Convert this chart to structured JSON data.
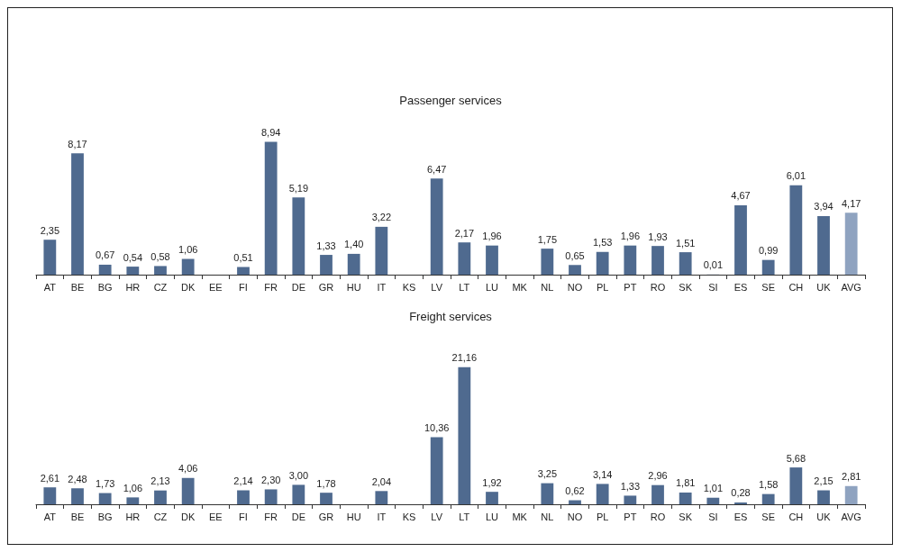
{
  "chart_data": [
    {
      "type": "bar",
      "title": "Passenger services",
      "categories": [
        "AT",
        "BE",
        "BG",
        "HR",
        "CZ",
        "DK",
        "EE",
        "FI",
        "FR",
        "DE",
        "GR",
        "HU",
        "IT",
        "KS",
        "LV",
        "LT",
        "LU",
        "MK",
        "NL",
        "NO",
        "PL",
        "PT",
        "RO",
        "SK",
        "SI",
        "ES",
        "SE",
        "CH",
        "UK",
        "AVG"
      ],
      "values": [
        2.35,
        8.17,
        0.67,
        0.54,
        0.58,
        1.06,
        null,
        0.51,
        8.94,
        5.19,
        1.33,
        1.4,
        3.22,
        null,
        6.47,
        2.17,
        1.96,
        null,
        1.75,
        0.65,
        1.53,
        1.96,
        1.93,
        1.51,
        0.01,
        4.67,
        0.99,
        6.01,
        3.94,
        4.17
      ],
      "value_labels": [
        "2,35",
        "8,17",
        "0,67",
        "0,54",
        "0,58",
        "1,06",
        null,
        "0,51",
        "8,94",
        "5,19",
        "1,33",
        "1,40",
        "3,22",
        null,
        "6,47",
        "2,17",
        "1,96",
        null,
        "1,75",
        "0,65",
        "1,53",
        "1,96",
        "1,93",
        "1,51",
        "0,01",
        "4,67",
        "0,99",
        "6,01",
        "3,94",
        "4,17"
      ],
      "colors": [
        "#4f6a8f",
        "#4f6a8f",
        "#4f6a8f",
        "#4f6a8f",
        "#4f6a8f",
        "#4f6a8f",
        "#4f6a8f",
        "#4f6a8f",
        "#4f6a8f",
        "#4f6a8f",
        "#4f6a8f",
        "#4f6a8f",
        "#4f6a8f",
        "#4f6a8f",
        "#4f6a8f",
        "#4f6a8f",
        "#4f6a8f",
        "#4f6a8f",
        "#4f6a8f",
        "#4f6a8f",
        "#4f6a8f",
        "#4f6a8f",
        "#4f6a8f",
        "#4f6a8f",
        "#4f6a8f",
        "#4f6a8f",
        "#4f6a8f",
        "#4f6a8f",
        "#4f6a8f",
        "#8fa3c0"
      ],
      "tick_labels": "x"
    },
    {
      "type": "bar",
      "title": "Freight services",
      "categories": [
        "AT",
        "BE",
        "BG",
        "HR",
        "CZ",
        "DK",
        "EE",
        "FI",
        "FR",
        "DE",
        "GR",
        "HU",
        "IT",
        "KS",
        "LV",
        "LT",
        "LU",
        "MK",
        "NL",
        "NO",
        "PL",
        "PT",
        "RO",
        "SK",
        "SI",
        "ES",
        "SE",
        "CH",
        "UK",
        "AVG"
      ],
      "values": [
        2.61,
        2.48,
        1.73,
        1.06,
        2.13,
        4.06,
        null,
        2.14,
        2.3,
        3.0,
        1.78,
        null,
        2.04,
        null,
        10.36,
        21.16,
        1.92,
        null,
        3.25,
        0.62,
        3.14,
        1.33,
        2.96,
        1.81,
        1.01,
        0.28,
        1.58,
        5.68,
        2.15,
        2.81
      ],
      "value_labels": [
        "2,61",
        "2,48",
        "1,73",
        "1,06",
        "2,13",
        "4,06",
        null,
        "2,14",
        "2,30",
        "3,00",
        "1,78",
        null,
        "2,04",
        null,
        "10,36",
        "21,16",
        "1,92",
        null,
        "3,25",
        "0,62",
        "3,14",
        "1,33",
        "2,96",
        "1,81",
        "1,01",
        "0,28",
        "1,58",
        "5,68",
        "2,15",
        "2,81"
      ],
      "colors": [
        "#4f6a8f",
        "#4f6a8f",
        "#4f6a8f",
        "#4f6a8f",
        "#4f6a8f",
        "#4f6a8f",
        "#4f6a8f",
        "#4f6a8f",
        "#4f6a8f",
        "#4f6a8f",
        "#4f6a8f",
        "#4f6a8f",
        "#4f6a8f",
        "#4f6a8f",
        "#4f6a8f",
        "#4f6a8f",
        "#4f6a8f",
        "#4f6a8f",
        "#4f6a8f",
        "#4f6a8f",
        "#4f6a8f",
        "#4f6a8f",
        "#4f6a8f",
        "#4f6a8f",
        "#4f6a8f",
        "#4f6a8f",
        "#4f6a8f",
        "#4f6a8f",
        "#4f6a8f",
        "#8fa3c0"
      ],
      "tick_labels": "x"
    }
  ]
}
